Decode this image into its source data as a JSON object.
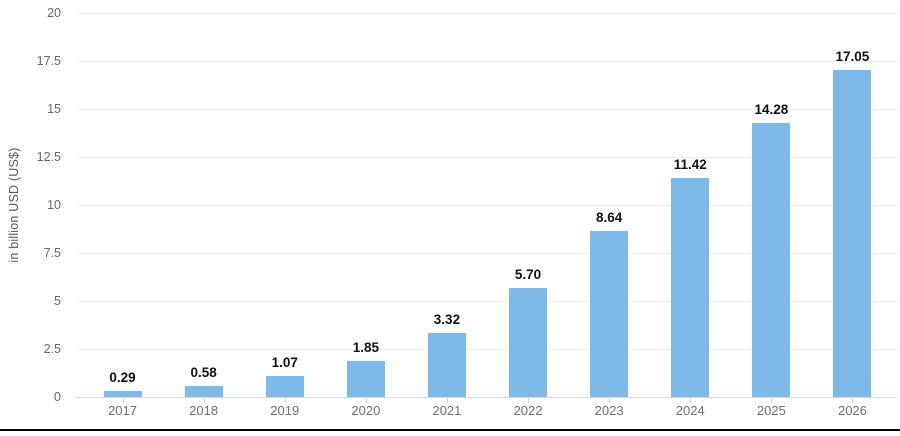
{
  "chart_data": {
    "type": "bar",
    "title": "",
    "xlabel": "",
    "ylabel": "in billion USD (US$)",
    "categories": [
      "2017",
      "2018",
      "2019",
      "2020",
      "2021",
      "2022",
      "2023",
      "2024",
      "2025",
      "2026"
    ],
    "values": [
      0.29,
      0.58,
      1.07,
      1.85,
      3.32,
      5.7,
      8.64,
      11.42,
      14.28,
      17.05
    ],
    "value_labels": [
      "0.29",
      "0.58",
      "1.07",
      "1.85",
      "3.32",
      "5.70",
      "8.64",
      "11.42",
      "14.28",
      "17.05"
    ],
    "ylim": [
      0,
      20
    ],
    "yticks": [
      0,
      2.5,
      5,
      7.5,
      10,
      12.5,
      15,
      17.5,
      20
    ],
    "ytick_labels": [
      "0",
      "2.5",
      "5",
      "7.5",
      "10",
      "12.5",
      "15",
      "17.5",
      "20"
    ],
    "grid": true,
    "legend": false,
    "colors": {
      "bar": "#7FB9E8",
      "gridline": "#EEEEEE",
      "axis_line": "#CCD8EA",
      "axis_tick": "#C6D4EA",
      "ytick_text": "#66666B",
      "xtick_text": "#6E6E73",
      "value_text": "#111111",
      "ylabel_text": "#55555A",
      "bottom_rule": "#000000"
    }
  }
}
